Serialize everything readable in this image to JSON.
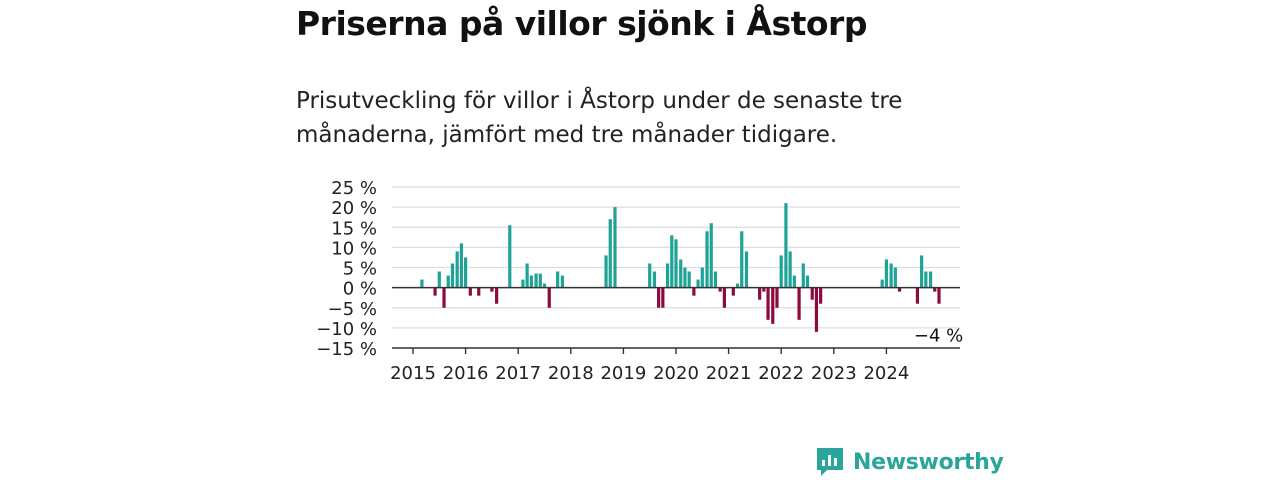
{
  "title": "Priserna på villor sjönk i Åstorp",
  "subtitle": "Prisutveckling för villor i Åstorp under de senaste tre månaderna, jämfört med tre månader tidigare.",
  "logo": {
    "text": "Newsworthy",
    "icon": "newsworthy-chart-icon"
  },
  "colors": {
    "positive": "#1fa397",
    "negative": "#8c0b3e",
    "grid": "#dddddd",
    "axis": "#333333",
    "brand": "#2aa59a"
  },
  "chart_data": {
    "type": "bar",
    "x_unit": "month (decimal year)",
    "y_unit": "%",
    "ylim": [
      -15,
      25
    ],
    "y_ticks": [
      25,
      20,
      15,
      10,
      5,
      0,
      -5,
      -10,
      -15
    ],
    "y_tick_labels": [
      "25 %",
      "20 %",
      "15 %",
      "10 %",
      "5 %",
      "0 %",
      "−5 %",
      "−10 %",
      "−15 %"
    ],
    "x_ticks": [
      2015,
      2016,
      2017,
      2018,
      2019,
      2020,
      2021,
      2022,
      2023,
      2024
    ],
    "grid": true,
    "annotation": {
      "text": "−4 %",
      "x": 2024.96,
      "y": -4
    },
    "series": [
      {
        "x": [
          2015.17,
          2015.42,
          2015.5,
          2015.59,
          2015.67,
          2015.75,
          2015.84,
          2015.92,
          2016.0,
          2016.09,
          2016.25,
          2016.5,
          2016.59,
          2016.84,
          2017.09,
          2017.17,
          2017.25,
          2017.34,
          2017.42,
          2017.5,
          2017.59,
          2017.75,
          2017.84,
          2018.67,
          2018.75,
          2018.84,
          2019.5,
          2019.59,
          2019.67,
          2019.75,
          2019.84,
          2019.92,
          2020.0,
          2020.09,
          2020.17,
          2020.25,
          2020.34,
          2020.42,
          2020.5,
          2020.59,
          2020.67,
          2020.75,
          2020.84,
          2020.92,
          2021.09,
          2021.17,
          2021.25,
          2021.34,
          2021.59,
          2021.67,
          2021.75,
          2021.84,
          2021.92,
          2022.0,
          2022.09,
          2022.17,
          2022.25,
          2022.34,
          2022.42,
          2022.5,
          2022.59,
          2022.67,
          2022.75,
          2023.92,
          2024.0,
          2024.09,
          2024.17,
          2024.25,
          2024.59,
          2024.67,
          2024.75,
          2024.84,
          2024.92,
          2025.0
        ],
        "values": [
          2,
          -2,
          4,
          -5,
          3,
          6,
          9,
          11,
          7.5,
          -2,
          -2,
          -1,
          -4,
          15.5,
          2,
          6,
          3,
          3.5,
          3.5,
          1,
          -5,
          4,
          3,
          8,
          17,
          20,
          6,
          4,
          -5,
          -5,
          6,
          13,
          12,
          7,
          5,
          4,
          -2,
          2,
          5,
          14,
          16,
          4,
          -1,
          -5,
          -2,
          1,
          14,
          9,
          -3,
          -1,
          -8,
          -9,
          -5,
          8,
          21,
          9,
          3,
          -8,
          6,
          3,
          -3,
          -11,
          -4,
          2,
          7,
          6,
          5,
          -1,
          -4,
          8,
          4,
          4,
          -1,
          -4
        ]
      }
    ]
  }
}
